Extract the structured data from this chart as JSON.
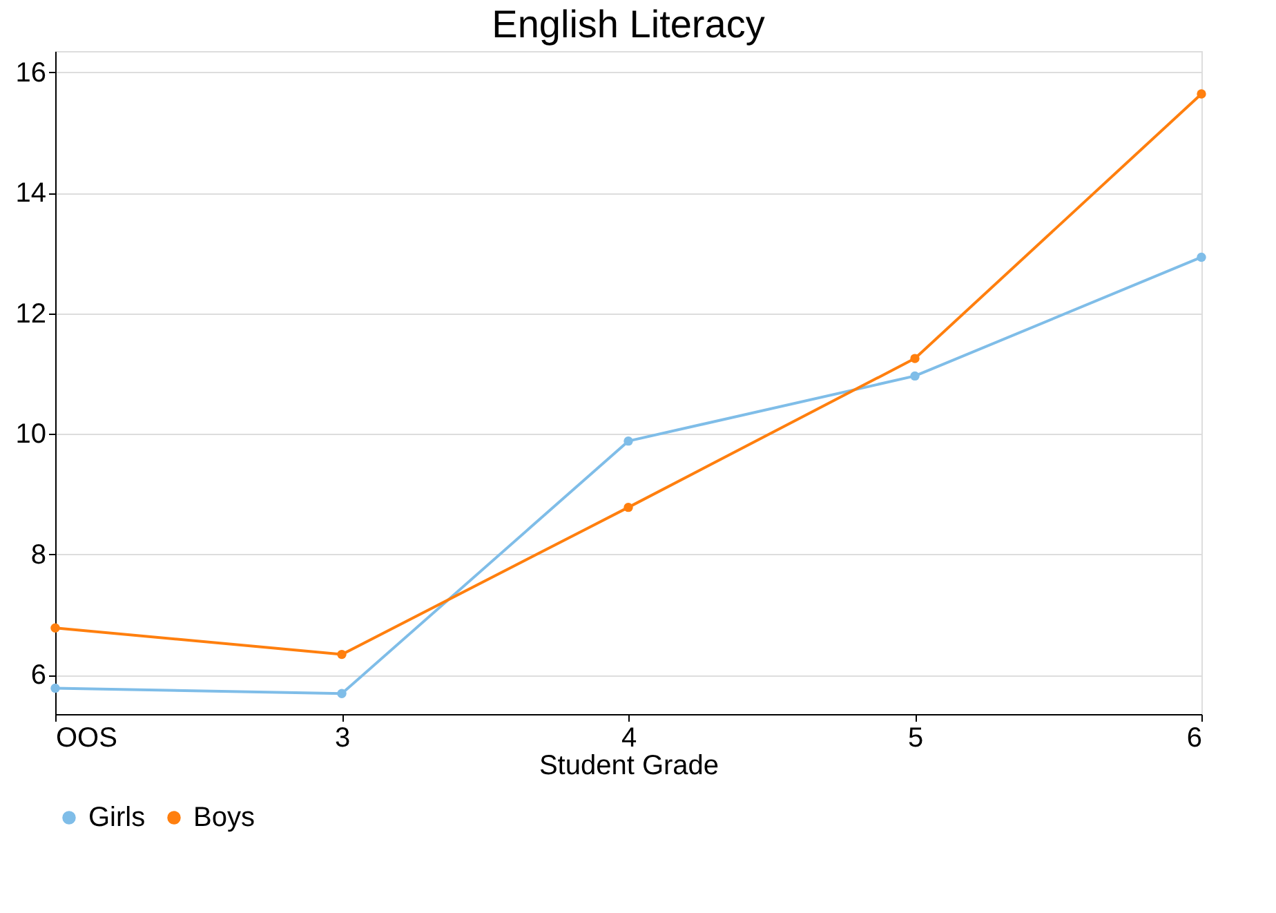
{
  "chart_data": {
    "type": "line",
    "title": "English Literacy",
    "xlabel": "Student Grade",
    "categories": [
      "OOS",
      "3",
      "4",
      "5",
      "6"
    ],
    "series": [
      {
        "name": "Girls",
        "color": "#7fbde8",
        "values": [
          5.78,
          5.69,
          9.88,
          10.96,
          12.93
        ]
      },
      {
        "name": "Boys",
        "color": "#ff7f0e",
        "values": [
          6.78,
          6.34,
          8.78,
          11.25,
          15.64
        ]
      }
    ],
    "ylim": [
      5.35,
      16.35
    ],
    "yticks": [
      6,
      8,
      10,
      12,
      14,
      16
    ],
    "grid": "y",
    "legend": "bottom",
    "marker": "circle",
    "line_style": "solid"
  }
}
